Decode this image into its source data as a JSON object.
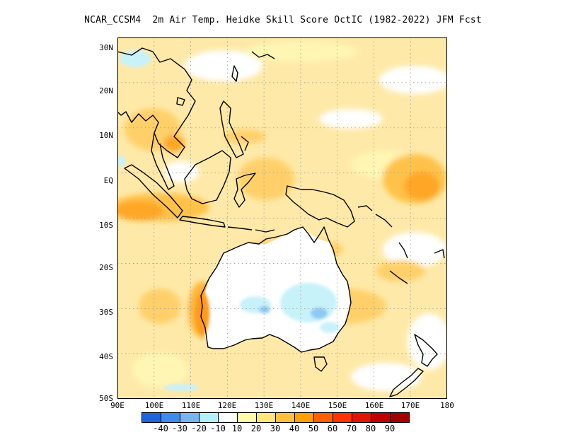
{
  "title": "NCAR_CCSM4  2m Air Temp. Heidke Skill Score OctIC (1982-2022) JFM Fcst",
  "map": {
    "lat_range": [
      -50,
      30
    ],
    "lon_range": [
      90,
      180
    ],
    "lat_ticks": [
      "30N",
      "20N",
      "10N",
      "EQ",
      "10S",
      "20S",
      "30S",
      "40S",
      "50S"
    ],
    "lon_ticks": [
      "90E",
      "100E",
      "110E",
      "120E",
      "130E",
      "140E",
      "150E",
      "160E",
      "170E",
      "180"
    ],
    "gridlines": "dotted",
    "land_outline_color": "#000000"
  },
  "legend": {
    "labels": [
      "-40",
      "-30",
      "-20",
      "-10",
      "10",
      "20",
      "30",
      "40",
      "50",
      "60",
      "70",
      "80",
      "90"
    ],
    "colors": [
      "#1e64dc",
      "#3c8cf0",
      "#78b4f0",
      "#b4f0fa",
      "#ffffff",
      "#fffaaa",
      "#ffe678",
      "#ffc03c",
      "#ffa000",
      "#ff6000",
      "#ff3200",
      "#e11400",
      "#c00000",
      "#a50000"
    ]
  }
}
